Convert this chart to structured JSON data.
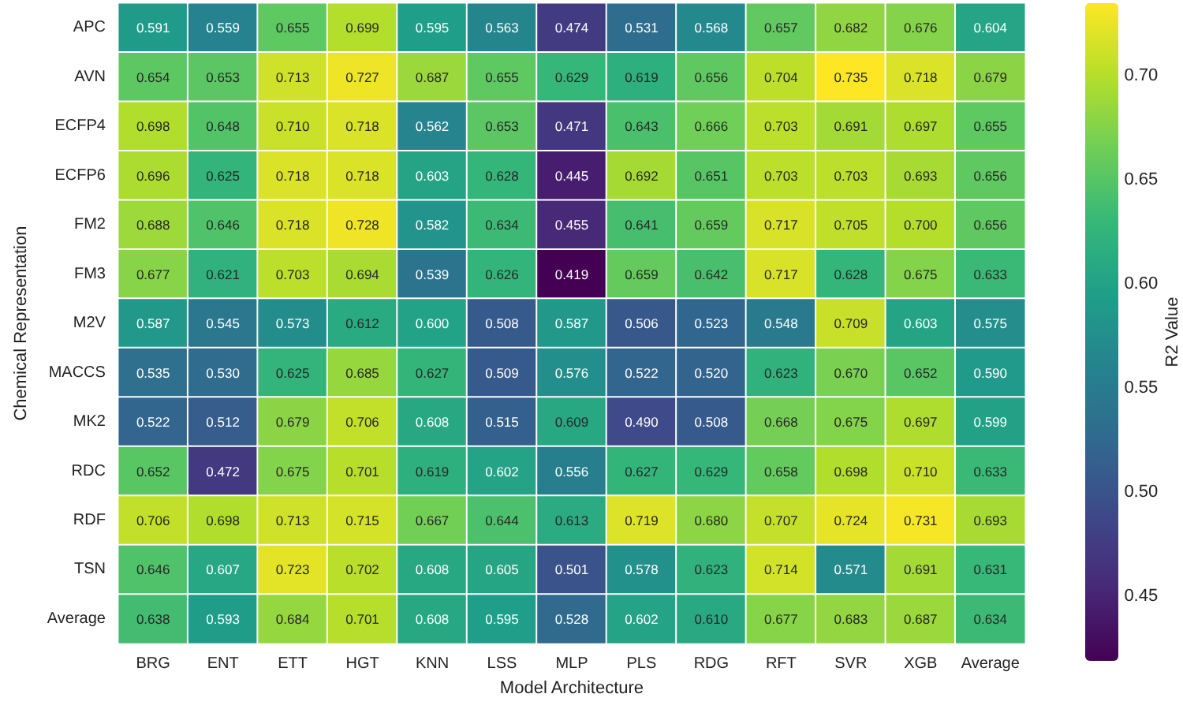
{
  "chart_data": {
    "type": "heatmap",
    "xlabel": "Model Architecture",
    "ylabel": "Chemical Representation",
    "clabel": "R2 Value",
    "categories": [
      "BRG",
      "ENT",
      "ETT",
      "HGT",
      "KNN",
      "LSS",
      "MLP",
      "PLS",
      "RDG",
      "RFT",
      "SVR",
      "XGB",
      "Average"
    ],
    "y_categories": [
      "APC",
      "AVN",
      "ECFP4",
      "ECFP6",
      "FM2",
      "FM3",
      "M2V",
      "MACCS",
      "MK2",
      "RDC",
      "RDF",
      "TSN",
      "Average"
    ],
    "cells": [
      [
        0.591,
        0.559,
        0.655,
        0.699,
        0.595,
        0.563,
        0.474,
        0.531,
        0.568,
        0.657,
        0.682,
        0.676,
        0.604
      ],
      [
        0.654,
        0.653,
        0.713,
        0.727,
        0.687,
        0.655,
        0.629,
        0.619,
        0.656,
        0.704,
        0.735,
        0.718,
        0.679
      ],
      [
        0.698,
        0.648,
        0.71,
        0.718,
        0.562,
        0.653,
        0.471,
        0.643,
        0.666,
        0.703,
        0.691,
        0.697,
        0.655
      ],
      [
        0.696,
        0.625,
        0.718,
        0.718,
        0.603,
        0.628,
        0.445,
        0.692,
        0.651,
        0.703,
        0.703,
        0.693,
        0.656
      ],
      [
        0.688,
        0.646,
        0.718,
        0.728,
        0.582,
        0.634,
        0.455,
        0.641,
        0.659,
        0.717,
        0.705,
        0.7,
        0.656
      ],
      [
        0.677,
        0.621,
        0.703,
        0.694,
        0.539,
        0.626,
        0.419,
        0.659,
        0.642,
        0.717,
        0.628,
        0.675,
        0.633
      ],
      [
        0.587,
        0.545,
        0.573,
        0.612,
        0.6,
        0.508,
        0.587,
        0.506,
        0.523,
        0.548,
        0.709,
        0.603,
        0.575
      ],
      [
        0.535,
        0.53,
        0.625,
        0.685,
        0.627,
        0.509,
        0.576,
        0.522,
        0.52,
        0.623,
        0.67,
        0.652,
        0.59
      ],
      [
        0.522,
        0.512,
        0.679,
        0.706,
        0.608,
        0.515,
        0.609,
        0.49,
        0.508,
        0.668,
        0.675,
        0.697,
        0.599
      ],
      [
        0.652,
        0.472,
        0.675,
        0.701,
        0.619,
        0.602,
        0.556,
        0.627,
        0.629,
        0.658,
        0.698,
        0.71,
        0.633
      ],
      [
        0.706,
        0.698,
        0.713,
        0.715,
        0.667,
        0.644,
        0.613,
        0.719,
        0.68,
        0.707,
        0.724,
        0.731,
        0.693
      ],
      [
        0.646,
        0.607,
        0.723,
        0.702,
        0.608,
        0.605,
        0.501,
        0.578,
        0.623,
        0.714,
        0.571,
        0.691,
        0.631
      ],
      [
        0.638,
        0.593,
        0.684,
        0.701,
        0.608,
        0.595,
        0.528,
        0.602,
        0.61,
        0.677,
        0.683,
        0.687,
        0.634
      ]
    ],
    "cell_labels": [
      [
        "0.591",
        "0.559",
        "0.655",
        "0.699",
        "0.595",
        "0.563",
        "0.474",
        "0.531",
        "0.568",
        "0.657",
        "0.682",
        "0.676",
        "0.604"
      ],
      [
        "0.654",
        "0.653",
        "0.713",
        "0.727",
        "0.687",
        "0.655",
        "0.629",
        "0.619",
        "0.656",
        "0.704",
        "0.735",
        "0.718",
        "0.679"
      ],
      [
        "0.698",
        "0.648",
        "0.710",
        "0.718",
        "0.562",
        "0.653",
        "0.471",
        "0.643",
        "0.666",
        "0.703",
        "0.691",
        "0.697",
        "0.655"
      ],
      [
        "0.696",
        "0.625",
        "0.718",
        "0.718",
        "0.603",
        "0.628",
        "0.445",
        "0.692",
        "0.651",
        "0.703",
        "0.703",
        "0.693",
        "0.656"
      ],
      [
        "0.688",
        "0.646",
        "0.718",
        "0.728",
        "0.582",
        "0.634",
        "0.455",
        "0.641",
        "0.659",
        "0.717",
        "0.705",
        "0.700",
        "0.656"
      ],
      [
        "0.677",
        "0.621",
        "0.703",
        "0.694",
        "0.539",
        "0.626",
        "0.419",
        "0.659",
        "0.642",
        "0.717",
        "0.628",
        "0.675",
        "0.633"
      ],
      [
        "0.587",
        "0.545",
        "0.573",
        "0.612",
        "0.600",
        "0.508",
        "0.587",
        "0.506",
        "0.523",
        "0.548",
        "0.709",
        "0.603",
        "0.575"
      ],
      [
        "0.535",
        "0.530",
        "0.625",
        "0.685",
        "0.627",
        "0.509",
        "0.576",
        "0.522",
        "0.520",
        "0.623",
        "0.670",
        "0.652",
        "0.590"
      ],
      [
        "0.522",
        "0.512",
        "0.679",
        "0.706",
        "0.608",
        "0.515",
        "0.609",
        "0.490",
        "0.508",
        "0.668",
        "0.675",
        "0.697",
        "0.599"
      ],
      [
        "0.652",
        "0.472",
        "0.675",
        "0.701",
        "0.619",
        "0.602",
        "0.556",
        "0.627",
        "0.629",
        "0.658",
        "0.698",
        "0.710",
        "0.633"
      ],
      [
        "0.706",
        "0.698",
        "0.713",
        "0.715",
        "0.667",
        "0.644",
        "0.613",
        "0.719",
        "0.680",
        "0.707",
        "0.724",
        "0.731",
        "0.693"
      ],
      [
        "0.646",
        "0.607",
        "0.723",
        "0.702",
        "0.608",
        "0.605",
        "0.501",
        "0.578",
        "0.623",
        "0.714",
        "0.571",
        "0.691",
        "0.631"
      ],
      [
        "0.638",
        "0.593",
        "0.684",
        "0.701",
        "0.608",
        "0.595",
        "0.528",
        "0.602",
        "0.610",
        "0.677",
        "0.683",
        "0.687",
        "0.634"
      ]
    ],
    "clim": [
      0.419,
      0.735
    ],
    "cticks": [
      0.45,
      {
        "value": 0.5,
        "label": "0.50"
      },
      0.55,
      {
        "value": 0.6,
        "label": "0.60"
      },
      0.65,
      {
        "value": 0.7,
        "label": "0.70"
      }
    ],
    "data_labels": true
  }
}
